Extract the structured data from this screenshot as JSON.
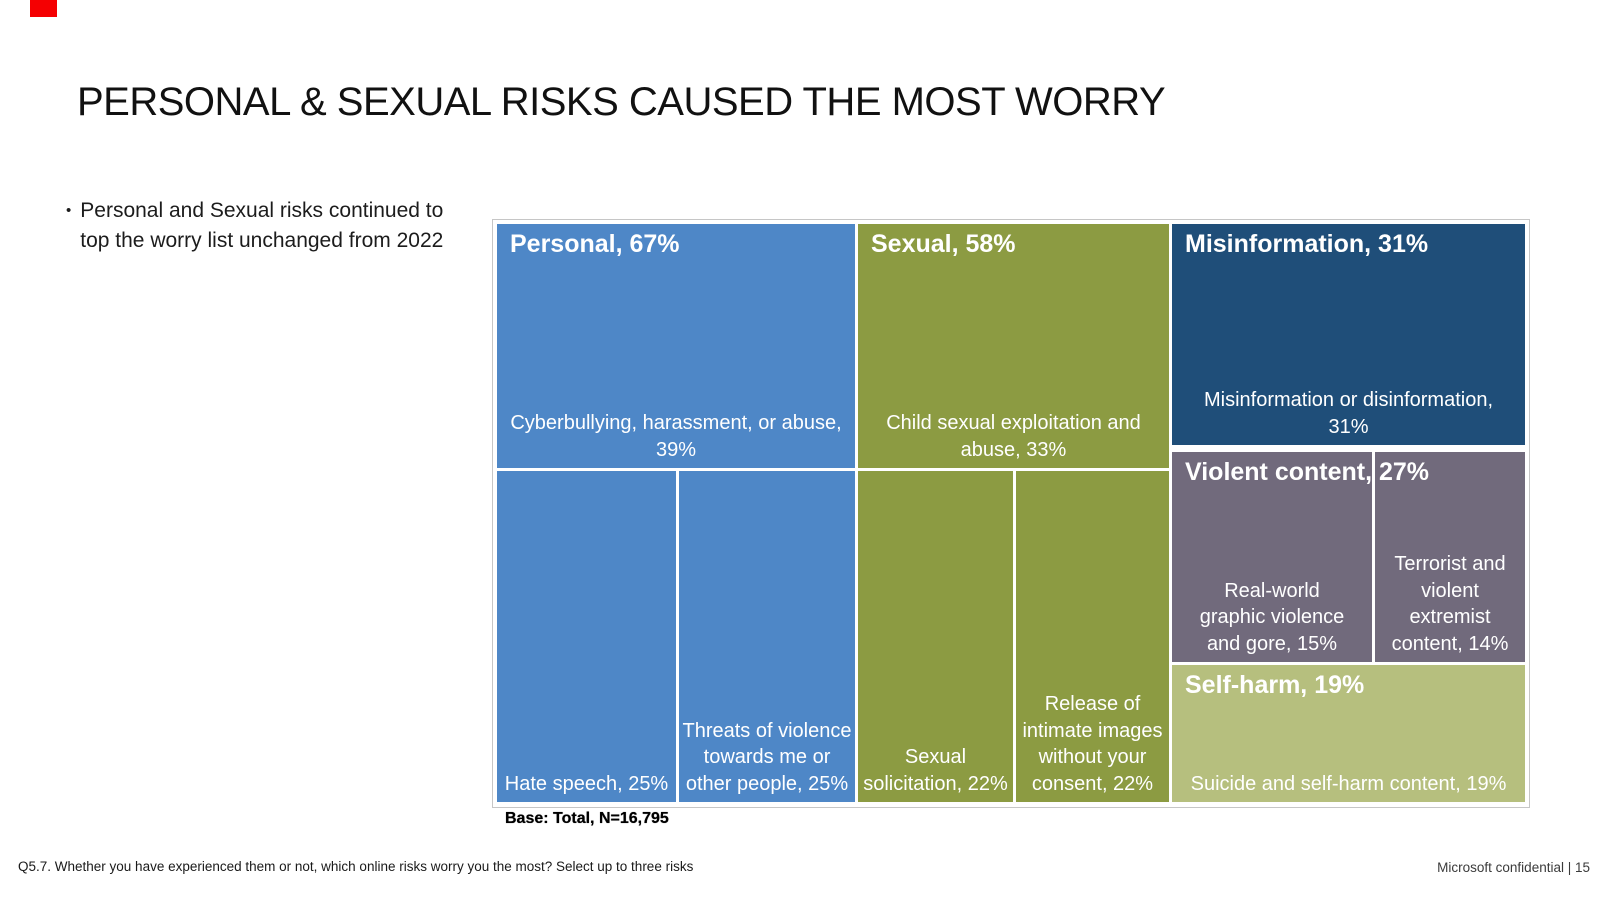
{
  "slide": {
    "title": "PERSONAL & SEXUAL RISKS CAUSED THE MOST WORRY",
    "bullet_dot": "•",
    "bullet_text": "Personal and Sexual risks continued to top the worry list unchanged from 2022",
    "base_note": "Base: Total, N=16,795",
    "footnote": "Q5.7. Whether you have experienced them or not, which online risks worry you the most? Select up to three risks",
    "confidential_label": "Microsoft confidential | 15",
    "marker_color": "#f50002"
  },
  "chart_data": {
    "type": "treemap",
    "title": "",
    "units": "percent",
    "base": "Total, N=16,795",
    "legend_position": "none",
    "border_color": "#c6c6c6",
    "gap_color": "#ffffff",
    "groups": [
      {
        "name": "Personal",
        "value_pct": 67,
        "header": "Personal, 67%",
        "color": "#4e87c7",
        "children": [
          {
            "name": "Cyberbullying, harassment, or abuse",
            "value_pct": 39,
            "label": "Cyberbullying, harassment, or abuse,\n39%"
          },
          {
            "name": "Hate speech",
            "value_pct": 25,
            "label": "Hate speech, 25%"
          },
          {
            "name": "Threats of violence towards me or other people",
            "value_pct": 25,
            "label": "Threats of violence\ntowards me or\nother people, 25%"
          }
        ]
      },
      {
        "name": "Sexual",
        "value_pct": 58,
        "header": "Sexual, 58%",
        "color": "#8c9b42",
        "children": [
          {
            "name": "Child sexual exploitation and abuse",
            "value_pct": 33,
            "label": "Child sexual exploitation and\nabuse, 33%"
          },
          {
            "name": "Sexual solicitation",
            "value_pct": 22,
            "label": "Sexual\nsolicitation, 22%"
          },
          {
            "name": "Release of intimate images without your consent",
            "value_pct": 22,
            "label": "Release of\nintimate images\nwithout your\nconsent, 22%"
          }
        ]
      },
      {
        "name": "Misinformation",
        "value_pct": 31,
        "header": "Misinformation, 31%",
        "color": "#1f4e79",
        "children": [
          {
            "name": "Misinformation or disinformation",
            "value_pct": 31,
            "label": "Misinformation or disinformation,\n31%"
          }
        ]
      },
      {
        "name": "Violent content",
        "value_pct": 27,
        "header": "Violent content, 27%",
        "color": "#716a7c",
        "children": [
          {
            "name": "Real-world graphic violence and gore",
            "value_pct": 15,
            "label": "Real-world\ngraphic violence\nand gore, 15%"
          },
          {
            "name": "Terrorist and violent extremist content",
            "value_pct": 14,
            "label": "Terrorist and\nviolent\nextremist\ncontent, 14%"
          }
        ]
      },
      {
        "name": "Self-harm",
        "value_pct": 19,
        "header": "Self-harm, 19%",
        "color": "#b6bf7e",
        "children": [
          {
            "name": "Suicide and self-harm content",
            "value_pct": 19,
            "label": "Suicide and self-harm content, 19%"
          }
        ]
      }
    ]
  }
}
